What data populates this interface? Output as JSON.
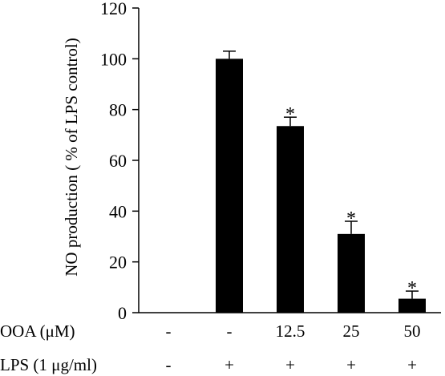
{
  "chart_data": {
    "type": "bar",
    "ylabel": "NO production ( % of LPS control)",
    "ylim": [
      0,
      120
    ],
    "yticks": [
      0,
      20,
      40,
      60,
      80,
      100,
      120
    ],
    "grid": false,
    "bar_color": "#000000",
    "conditions": [
      {
        "label": "OOA (μM)",
        "values": [
          "-",
          "-",
          "12.5",
          "25",
          "50"
        ]
      },
      {
        "label": "LPS (1 μg/ml)",
        "values": [
          "-",
          "+",
          "+",
          "+",
          "+"
        ]
      }
    ],
    "values": [
      0,
      100,
      73.5,
      31,
      5.5
    ],
    "errors": [
      0,
      3,
      3.5,
      5,
      3
    ],
    "significance": [
      "",
      "",
      "*",
      "*",
      "*"
    ]
  }
}
